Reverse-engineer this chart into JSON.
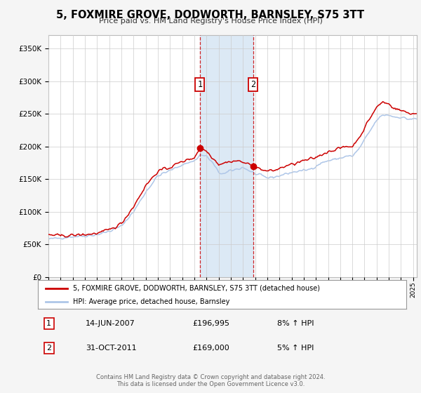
{
  "title": "5, FOXMIRE GROVE, DODWORTH, BARNSLEY, S75 3TT",
  "subtitle": "Price paid vs. HM Land Registry's House Price Index (HPI)",
  "hpi_color": "#aec6e8",
  "price_color": "#cc0000",
  "background_color": "#f5f5f5",
  "plot_bg_color": "#ffffff",
  "grid_color": "#cccccc",
  "shade_color": "#dce9f5",
  "sale1_x": 2007.452,
  "sale1_price": 196995,
  "sale2_x": 2011.831,
  "sale2_price": 169000,
  "legend_price_label": "5, FOXMIRE GROVE, DODWORTH, BARNSLEY, S75 3TT (detached house)",
  "legend_hpi_label": "HPI: Average price, detached house, Barnsley",
  "table_rows": [
    {
      "label": "1",
      "date": "14-JUN-2007",
      "price": "£196,995",
      "hpi": "8% ↑ HPI"
    },
    {
      "label": "2",
      "date": "31-OCT-2011",
      "price": "£169,000",
      "hpi": "5% ↑ HPI"
    }
  ],
  "footer1": "Contains HM Land Registry data © Crown copyright and database right 2024.",
  "footer2": "This data is licensed under the Open Government Licence v3.0.",
  "ylim": [
    0,
    370000
  ],
  "yticks": [
    0,
    50000,
    100000,
    150000,
    200000,
    250000,
    300000,
    350000
  ],
  "ytick_labels": [
    "£0",
    "£50K",
    "£100K",
    "£150K",
    "£200K",
    "£250K",
    "£300K",
    "£350K"
  ],
  "xstart": 1995.0,
  "xend": 2025.3,
  "hpi_anchors_x": [
    1995.0,
    1996.0,
    1997.0,
    1998.0,
    1999.0,
    2000.0,
    2001.0,
    2002.0,
    2003.0,
    2004.0,
    2005.0,
    2006.0,
    2007.0,
    2007.5,
    2008.0,
    2008.5,
    2009.0,
    2009.5,
    2010.0,
    2010.5,
    2011.0,
    2011.5,
    2012.0,
    2012.5,
    2013.0,
    2013.5,
    2014.0,
    2014.5,
    2015.0,
    2015.5,
    2016.0,
    2016.5,
    2017.0,
    2017.5,
    2018.0,
    2018.5,
    2019.0,
    2019.5,
    2020.0,
    2020.5,
    2021.0,
    2021.5,
    2022.0,
    2022.5,
    2023.0,
    2023.5,
    2024.0,
    2024.5,
    2025.0
  ],
  "hpi_anchors_y": [
    58000,
    60000,
    62000,
    63000,
    65000,
    70000,
    78000,
    100000,
    130000,
    155000,
    163000,
    172000,
    178000,
    187000,
    185000,
    175000,
    160000,
    158000,
    163000,
    165000,
    168000,
    163000,
    158000,
    155000,
    152000,
    153000,
    155000,
    158000,
    160000,
    162000,
    163000,
    165000,
    170000,
    175000,
    178000,
    180000,
    182000,
    185000,
    185000,
    195000,
    210000,
    225000,
    240000,
    248000,
    248000,
    245000,
    245000,
    242000,
    242000
  ],
  "price_anchors_x": [
    1995.0,
    1996.0,
    1997.0,
    1998.0,
    1999.0,
    2000.0,
    2001.0,
    2002.0,
    2003.0,
    2004.0,
    2005.0,
    2006.0,
    2007.0,
    2007.5,
    2008.0,
    2008.5,
    2009.0,
    2009.5,
    2010.0,
    2010.5,
    2011.0,
    2011.5,
    2012.0,
    2012.5,
    2013.0,
    2013.5,
    2014.0,
    2014.5,
    2015.0,
    2015.5,
    2016.0,
    2016.5,
    2017.0,
    2017.5,
    2018.0,
    2018.5,
    2019.0,
    2019.5,
    2020.0,
    2020.5,
    2021.0,
    2021.5,
    2022.0,
    2022.5,
    2023.0,
    2023.5,
    2024.0,
    2024.5,
    2025.0
  ],
  "price_anchors_y": [
    65000,
    63000,
    64000,
    65000,
    67000,
    72000,
    82000,
    108000,
    140000,
    162000,
    168000,
    177000,
    183000,
    198000,
    193000,
    183000,
    173000,
    175000,
    177000,
    178000,
    176000,
    172000,
    168000,
    165000,
    162000,
    163000,
    166000,
    170000,
    172000,
    175000,
    178000,
    180000,
    183000,
    188000,
    192000,
    195000,
    197000,
    200000,
    200000,
    212000,
    228000,
    245000,
    260000,
    268000,
    265000,
    258000,
    255000,
    252000,
    250000
  ]
}
